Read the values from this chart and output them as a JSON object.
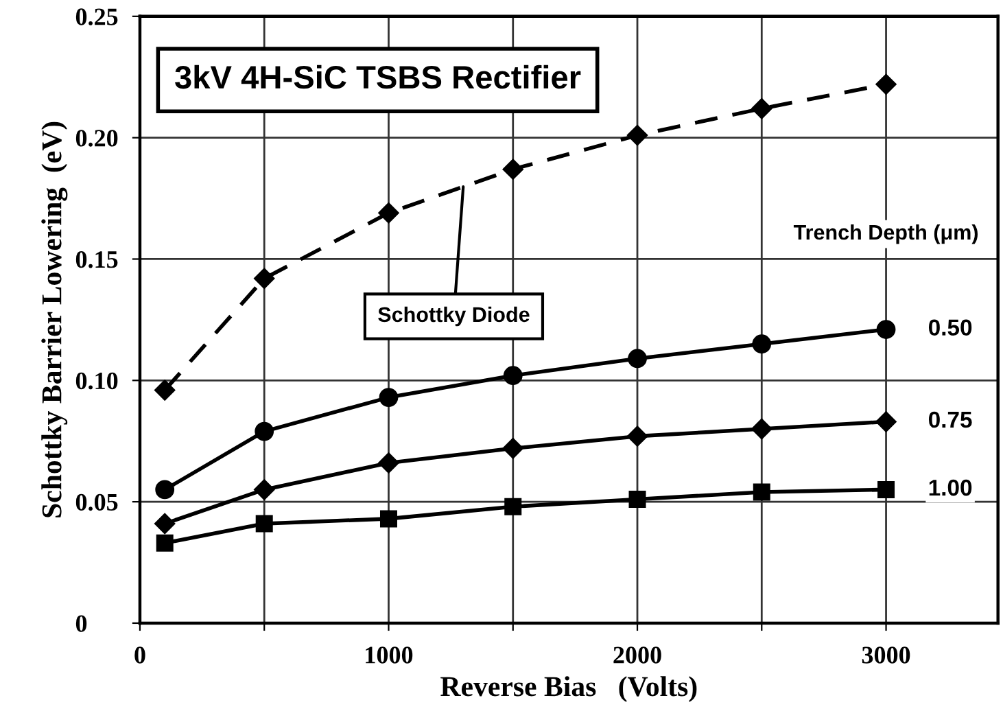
{
  "chart_data": {
    "type": "line",
    "title": "3kV 4H-SiC TSBS Rectifier",
    "xlabel": "Reverse Bias   (Volts)",
    "ylabel": "Schottky Barrier Lowering  (eV)",
    "legend_title": "Trench Depth (μm)",
    "x": [
      100,
      500,
      1000,
      1500,
      2000,
      2500,
      3000
    ],
    "series": [
      {
        "name": "Schottky Diode",
        "color": "#000000",
        "marker": "diamond",
        "line_style": "dashed",
        "values": [
          0.096,
          0.142,
          0.169,
          0.187,
          0.201,
          0.212,
          0.222
        ]
      },
      {
        "name": "0.50",
        "color": "#000000",
        "marker": "circle",
        "line_style": "solid",
        "values": [
          0.055,
          0.079,
          0.093,
          0.102,
          0.109,
          0.115,
          0.121
        ]
      },
      {
        "name": "0.75",
        "color": "#000000",
        "marker": "diamond",
        "line_style": "solid",
        "values": [
          0.041,
          0.055,
          0.066,
          0.072,
          0.077,
          0.08,
          0.083
        ]
      },
      {
        "name": "1.00",
        "color": "#000000",
        "marker": "square",
        "line_style": "solid",
        "values": [
          0.033,
          0.041,
          0.043,
          0.048,
          0.051,
          0.054,
          0.055
        ]
      }
    ],
    "xlim": [
      0,
      3450
    ],
    "ylim": [
      0,
      0.25
    ],
    "xticks": [
      0,
      {
        "value": 500,
        "label": null
      },
      1000,
      {
        "value": 1500,
        "label": null
      },
      2000,
      {
        "value": 2500,
        "label": null
      },
      3000
    ],
    "yticks": [
      0,
      0.05,
      {
        "value": 0.1,
        "label": "0.10"
      },
      0.15,
      {
        "value": 0.2,
        "label": "0.20"
      },
      0.25
    ],
    "grid": true
  }
}
